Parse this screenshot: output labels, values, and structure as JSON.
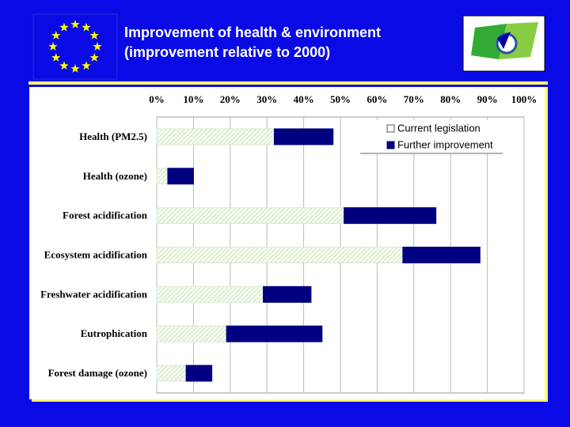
{
  "chart_data": {
    "type": "bar",
    "orientation": "horizontal",
    "stacked": true,
    "title": "Improvement of health & environment",
    "subtitle": "(improvement relative to 2000)",
    "categories": [
      "Health (PM2.5)",
      "Health (ozone)",
      "Forest acidification",
      "Ecosystem acidification",
      "Freshwater acidification",
      "Eutrophication",
      "Forest damage (ozone)"
    ],
    "series": [
      {
        "name": "Current legislation",
        "color": "#e6f2dc",
        "values": [
          32,
          3,
          51,
          67,
          29,
          19,
          8
        ]
      },
      {
        "name": "Further improvement",
        "color": "#000080",
        "values": [
          16,
          7,
          25,
          21,
          13,
          26,
          7
        ]
      }
    ],
    "xlim": [
      0,
      100
    ],
    "xticks": [
      {
        "value": 0,
        "label": "0%"
      },
      {
        "value": 10,
        "label": "10%"
      },
      {
        "value": 20,
        "label": "20%"
      },
      {
        "value": 30,
        "label": "30%"
      },
      {
        "value": 40,
        "label": "40%"
      },
      {
        "value": 50,
        "label": "50%"
      },
      {
        "value": 60,
        "label": "60%"
      },
      {
        "value": 70,
        "label": "70%"
      },
      {
        "value": 80,
        "label": "80%"
      },
      {
        "value": 90,
        "label": "90%"
      },
      {
        "value": 100,
        "label": "100%"
      }
    ],
    "grid": true,
    "legend": "top-right"
  }
}
